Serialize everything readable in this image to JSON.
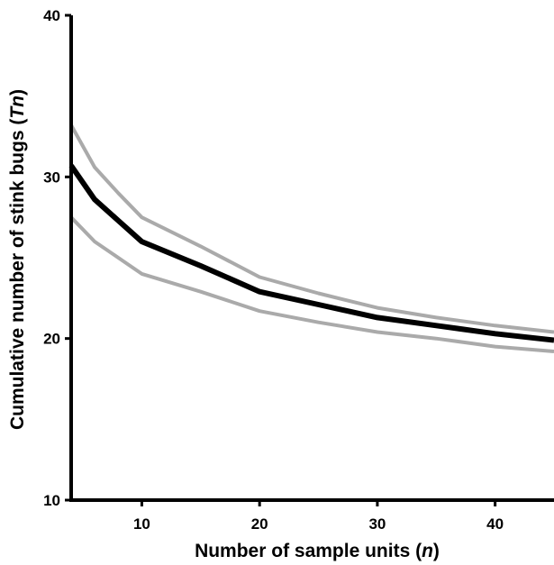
{
  "chart_data": {
    "type": "line",
    "title": "",
    "xlabel": {
      "main": "Number of sample units (",
      "var": "n",
      "close": ")"
    },
    "ylabel": {
      "main": "Cumulative number of stink bugs (",
      "var": "Tn",
      "close": ")"
    },
    "xlim": [
      4,
      45
    ],
    "ylim": [
      10,
      40
    ],
    "xticks": [
      10,
      20,
      30,
      40
    ],
    "yticks": [
      10,
      20,
      30,
      40
    ],
    "grid": false,
    "series": [
      {
        "role": "upper",
        "color": "#aaaaaa",
        "x": [
          4,
          6,
          8,
          10,
          15,
          20,
          25,
          30,
          35,
          40,
          45
        ],
        "y": [
          33.2,
          30.6,
          29.0,
          27.5,
          25.7,
          23.8,
          22.8,
          21.9,
          21.3,
          20.8,
          20.4
        ]
      },
      {
        "role": "stop line",
        "color": "#000000",
        "x": [
          4,
          6,
          8,
          10,
          15,
          20,
          25,
          30,
          35,
          40,
          45
        ],
        "y": [
          30.7,
          28.6,
          27.3,
          26.0,
          24.5,
          22.9,
          22.1,
          21.3,
          20.8,
          20.3,
          19.9
        ]
      },
      {
        "role": "lower",
        "color": "#aaaaaa",
        "x": [
          4,
          6,
          8,
          10,
          15,
          20,
          25,
          30,
          35,
          40,
          45
        ],
        "y": [
          27.5,
          26.0,
          25.0,
          24.0,
          22.9,
          21.7,
          21.0,
          20.4,
          20.0,
          19.5,
          19.2
        ]
      }
    ]
  }
}
